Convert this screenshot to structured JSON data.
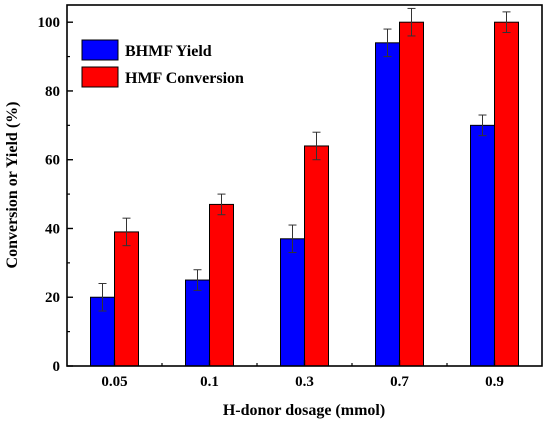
{
  "chart_data": {
    "type": "bar",
    "title": "",
    "xlabel": "H-donor dosage (mmol)",
    "ylabel": "Conversion or Yield (%)",
    "categories": [
      "0.05",
      "0.1",
      "0.3",
      "0.7",
      "0.9"
    ],
    "ylim": [
      0,
      105
    ],
    "yticks": [
      0,
      20,
      40,
      60,
      80,
      100
    ],
    "grid": false,
    "legend_position": "top-left",
    "series": [
      {
        "name": "BHMF Yield",
        "color": "#0000ff",
        "values": [
          20,
          25,
          37,
          94,
          70
        ],
        "errors": [
          4,
          3,
          4,
          4,
          3
        ]
      },
      {
        "name": "HMF Conversion",
        "color": "#ff0000",
        "values": [
          39,
          47,
          64,
          100,
          100
        ],
        "errors": [
          4,
          3,
          4,
          4,
          3
        ]
      }
    ]
  }
}
